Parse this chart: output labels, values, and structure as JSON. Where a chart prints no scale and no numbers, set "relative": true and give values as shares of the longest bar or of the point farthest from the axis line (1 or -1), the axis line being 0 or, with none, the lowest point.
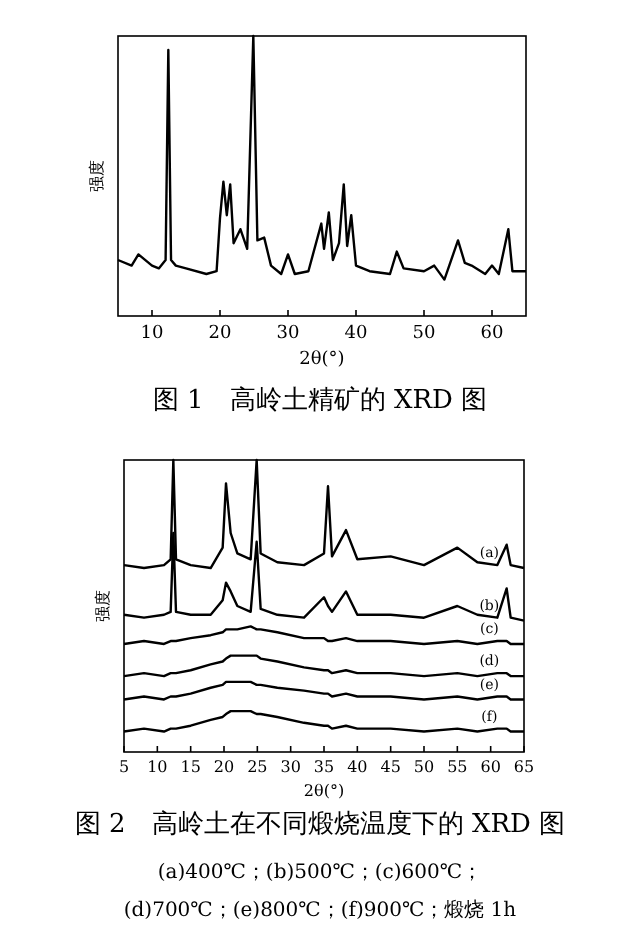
{
  "chart_data": [
    {
      "type": "line",
      "relative": true,
      "xlabel": "2θ(°)",
      "ylabel": "强度",
      "xlim": [
        5,
        65
      ],
      "xticks": [
        10,
        20,
        30,
        40,
        50,
        60
      ],
      "color": "#000000",
      "x": [
        5,
        7,
        8,
        10,
        11,
        12,
        12.4,
        12.8,
        13.5,
        15,
        18,
        19.5,
        20,
        20.5,
        21,
        21.5,
        22,
        23,
        24,
        24.9,
        25.5,
        26.5,
        27.5,
        29,
        30,
        31,
        33,
        34.9,
        35.3,
        36,
        36.6,
        37.5,
        38.2,
        38.7,
        39.3,
        40,
        42,
        45,
        46,
        47,
        50,
        51.5,
        53,
        55,
        56,
        57,
        59,
        60,
        61,
        62.4,
        63,
        65
      ],
      "values": [
        0.2,
        0.18,
        0.22,
        0.18,
        0.17,
        0.2,
        0.95,
        0.2,
        0.18,
        0.17,
        0.15,
        0.16,
        0.35,
        0.48,
        0.36,
        0.47,
        0.26,
        0.31,
        0.24,
        1.0,
        0.27,
        0.28,
        0.18,
        0.15,
        0.22,
        0.15,
        0.16,
        0.33,
        0.24,
        0.37,
        0.2,
        0.26,
        0.47,
        0.25,
        0.36,
        0.18,
        0.16,
        0.15,
        0.23,
        0.17,
        0.16,
        0.18,
        0.13,
        0.27,
        0.19,
        0.18,
        0.15,
        0.18,
        0.15,
        0.31,
        0.16,
        0.16
      ],
      "annotations": [
        "图 1　高岭土精矿的 XRD 图"
      ]
    },
    {
      "type": "line",
      "relative": true,
      "xlabel": "2θ(°)",
      "ylabel": "强度",
      "xlim": [
        5,
        65
      ],
      "xticks": [
        5,
        10,
        15,
        20,
        25,
        30,
        35,
        40,
        45,
        50,
        55,
        60,
        65
      ],
      "x": [
        5,
        8,
        11,
        12,
        12.4,
        12.8,
        15,
        18,
        19.8,
        20.3,
        21,
        22,
        24,
        24.9,
        25.5,
        28,
        32,
        35,
        35.6,
        36.2,
        38.3,
        40,
        45,
        50,
        55,
        58,
        61,
        62.4,
        63,
        65
      ],
      "series": [
        {
          "name": "(a)",
          "color": "#000000",
          "values": [
            0.64,
            0.63,
            0.64,
            0.66,
            1.0,
            0.66,
            0.64,
            0.63,
            0.7,
            0.92,
            0.75,
            0.68,
            0.66,
            1.0,
            0.68,
            0.65,
            0.64,
            0.68,
            0.91,
            0.67,
            0.76,
            0.66,
            0.67,
            0.64,
            0.7,
            0.65,
            0.64,
            0.71,
            0.64,
            0.63
          ]
        },
        {
          "name": "(b)",
          "color": "#000000",
          "values": [
            0.47,
            0.46,
            0.47,
            0.48,
            0.75,
            0.48,
            0.47,
            0.47,
            0.52,
            0.58,
            0.55,
            0.5,
            0.48,
            0.72,
            0.49,
            0.47,
            0.46,
            0.53,
            0.5,
            0.48,
            0.55,
            0.47,
            0.47,
            0.46,
            0.5,
            0.47,
            0.46,
            0.56,
            0.46,
            0.45
          ]
        },
        {
          "name": "(c)",
          "color": "#000000",
          "values": [
            0.37,
            0.38,
            0.37,
            0.38,
            0.38,
            0.38,
            0.39,
            0.4,
            0.41,
            0.42,
            0.42,
            0.42,
            0.43,
            0.42,
            0.42,
            0.41,
            0.39,
            0.39,
            0.38,
            0.38,
            0.39,
            0.38,
            0.38,
            0.37,
            0.38,
            0.37,
            0.38,
            0.38,
            0.37,
            0.37
          ]
        },
        {
          "name": "(d)",
          "color": "#000000",
          "values": [
            0.26,
            0.27,
            0.26,
            0.27,
            0.27,
            0.27,
            0.28,
            0.3,
            0.31,
            0.32,
            0.33,
            0.33,
            0.33,
            0.33,
            0.32,
            0.31,
            0.29,
            0.28,
            0.28,
            0.27,
            0.28,
            0.27,
            0.27,
            0.26,
            0.27,
            0.26,
            0.27,
            0.27,
            0.26,
            0.26
          ]
        },
        {
          "name": "(e)",
          "color": "#000000",
          "values": [
            0.18,
            0.19,
            0.18,
            0.19,
            0.19,
            0.19,
            0.2,
            0.22,
            0.23,
            0.24,
            0.24,
            0.24,
            0.24,
            0.23,
            0.23,
            0.22,
            0.21,
            0.2,
            0.2,
            0.19,
            0.2,
            0.19,
            0.19,
            0.18,
            0.19,
            0.18,
            0.19,
            0.19,
            0.18,
            0.18
          ]
        },
        {
          "name": "(f)",
          "color": "#000000",
          "values": [
            0.07,
            0.08,
            0.07,
            0.08,
            0.08,
            0.08,
            0.09,
            0.11,
            0.12,
            0.13,
            0.14,
            0.14,
            0.14,
            0.13,
            0.13,
            0.12,
            0.1,
            0.09,
            0.09,
            0.08,
            0.09,
            0.08,
            0.08,
            0.07,
            0.08,
            0.07,
            0.08,
            0.08,
            0.07,
            0.07
          ]
        }
      ],
      "annotations": [
        "图 2　高岭土在不同煅烧温度下的 XRD 图",
        "(a)400℃；(b)500℃；(c)600℃；",
        "(d)700℃；(e)800℃；(f)900℃；煅烧 1h"
      ]
    }
  ]
}
